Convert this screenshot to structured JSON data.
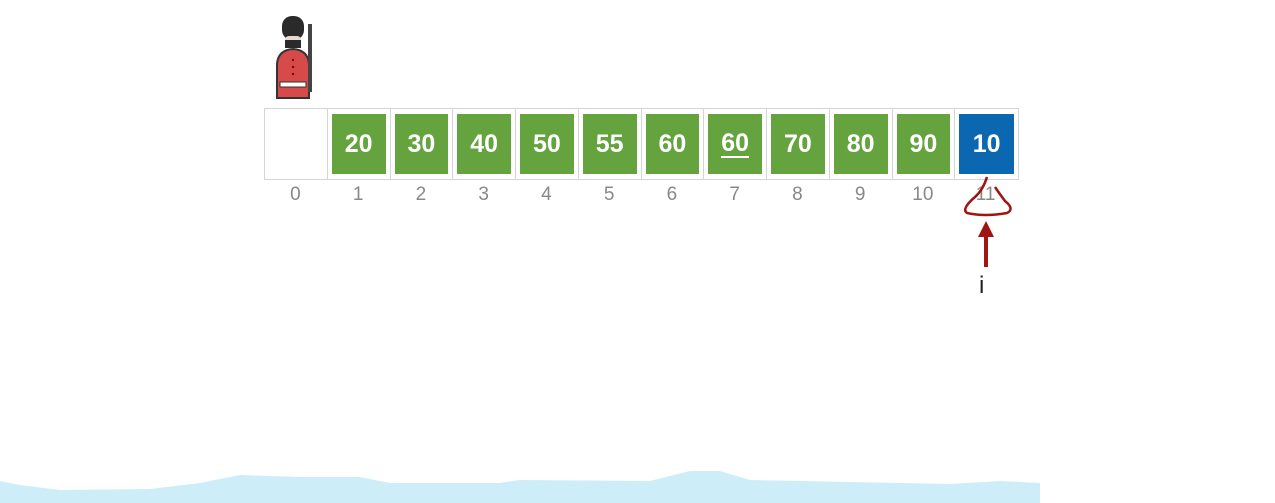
{
  "array": {
    "cells": [
      {
        "index": "0",
        "value": "",
        "state": "empty"
      },
      {
        "index": "1",
        "value": "20",
        "state": "sorted"
      },
      {
        "index": "2",
        "value": "30",
        "state": "sorted"
      },
      {
        "index": "3",
        "value": "40",
        "state": "sorted"
      },
      {
        "index": "4",
        "value": "50",
        "state": "sorted"
      },
      {
        "index": "5",
        "value": "55",
        "state": "sorted"
      },
      {
        "index": "6",
        "value": "60",
        "state": "sorted"
      },
      {
        "index": "7",
        "value": "60",
        "state": "sorted",
        "underlined": true
      },
      {
        "index": "8",
        "value": "70",
        "state": "sorted"
      },
      {
        "index": "9",
        "value": "80",
        "state": "sorted"
      },
      {
        "index": "10",
        "value": "90",
        "state": "sorted"
      },
      {
        "index": "11",
        "value": "10",
        "state": "current"
      }
    ]
  },
  "pointer": {
    "label": "i",
    "target_index": "11"
  },
  "colors": {
    "sorted": "#65a33f",
    "current": "#0a67b0",
    "annotation": "#a01414",
    "index_text": "#888888",
    "wave": "#cdeef8"
  },
  "icons": {
    "sentinel": "queens-guard-icon",
    "pointer": "arrow-up-icon"
  }
}
